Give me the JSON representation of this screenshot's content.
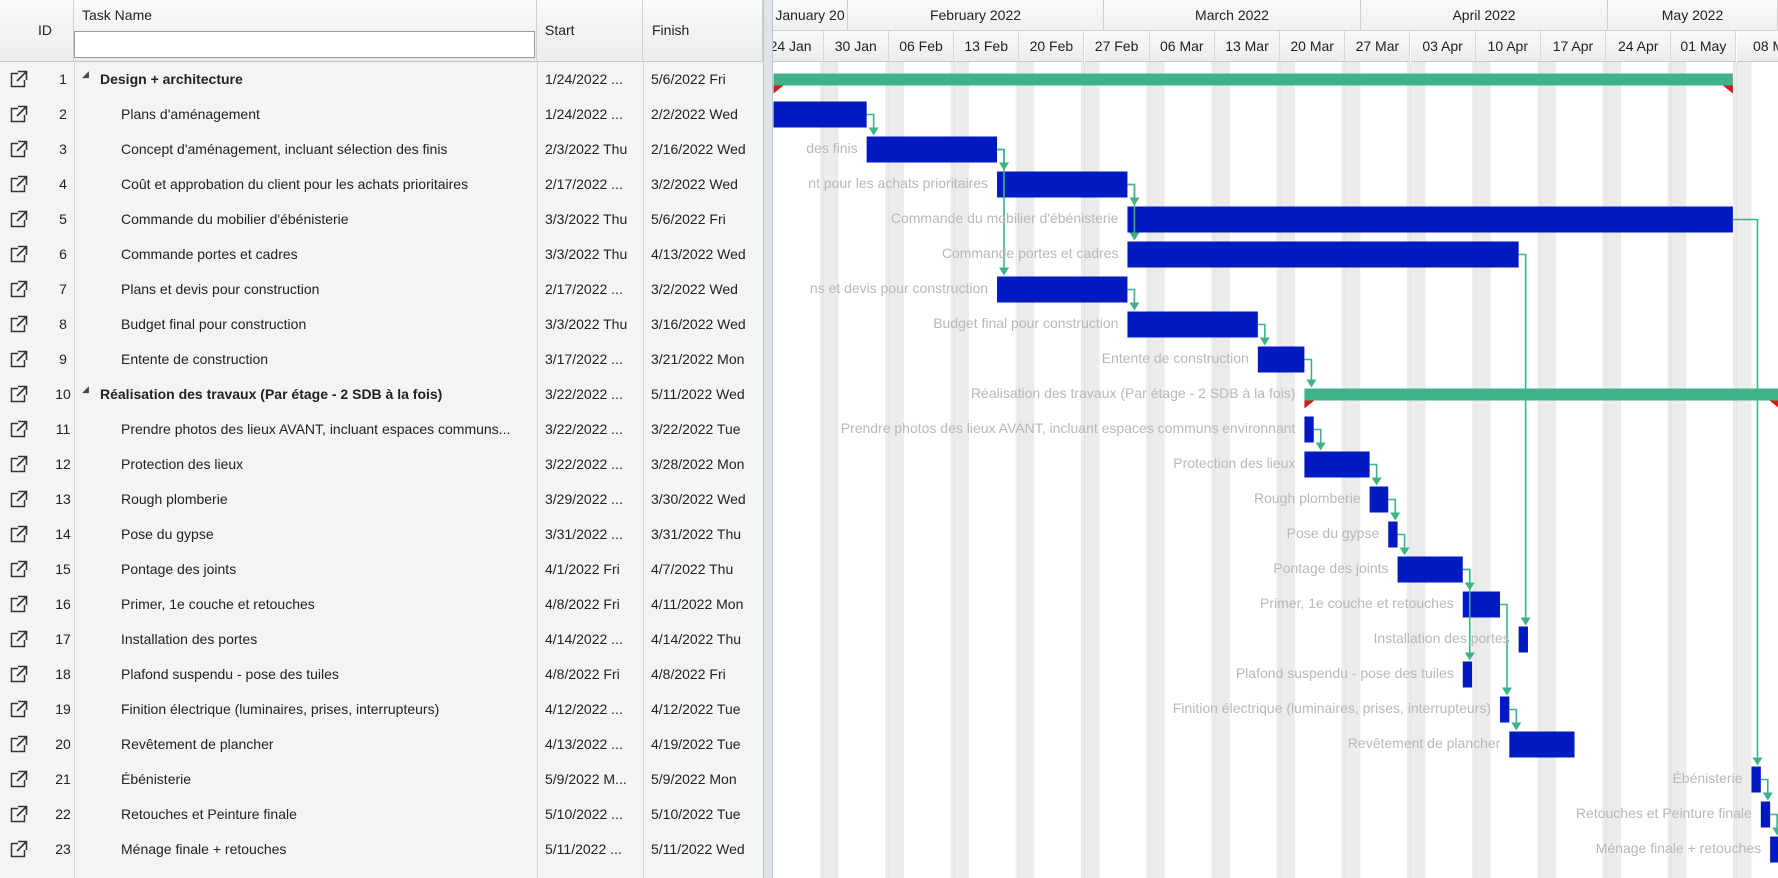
{
  "columns": {
    "id": "ID",
    "task_name": "Task Name",
    "start": "Start",
    "finish": "Finish"
  },
  "filter": {
    "value": ""
  },
  "tasks": [
    {
      "id": "1",
      "name": "Design + architecture",
      "start": "1/24/2022 ...",
      "finish": "5/6/2022 Fri",
      "summary": true,
      "label": ""
    },
    {
      "id": "2",
      "name": "Plans d'aménagement",
      "start": "1/24/2022 ...",
      "finish": "2/2/2022 Wed",
      "summary": false,
      "label": ""
    },
    {
      "id": "3",
      "name": "Concept d'aménagement, incluant sélection des finis",
      "start": "2/3/2022 Thu",
      "finish": "2/16/2022 Wed",
      "summary": false,
      "label": "des finis"
    },
    {
      "id": "4",
      "name": "Coût et approbation du client pour les achats prioritaires",
      "start": "2/17/2022 ...",
      "finish": "3/2/2022 Wed",
      "summary": false,
      "label": "nt pour les achats prioritaires"
    },
    {
      "id": "5",
      "name": "Commande du mobilier d'ébénisterie",
      "start": "3/3/2022 Thu",
      "finish": "5/6/2022 Fri",
      "summary": false,
      "label": "Commande du mobilier d'ébénisterie"
    },
    {
      "id": "6",
      "name": "Commande portes et cadres",
      "start": "3/3/2022 Thu",
      "finish": "4/13/2022 Wed",
      "summary": false,
      "label": "Commande portes et cadres"
    },
    {
      "id": "7",
      "name": "Plans et devis pour construction",
      "start": "2/17/2022 ...",
      "finish": "3/2/2022 Wed",
      "summary": false,
      "label": "ns et devis pour construction"
    },
    {
      "id": "8",
      "name": "Budget final pour construction",
      "start": "3/3/2022 Thu",
      "finish": "3/16/2022 Wed",
      "summary": false,
      "label": "Budget final pour construction"
    },
    {
      "id": "9",
      "name": "Entente de construction",
      "start": "3/17/2022 ...",
      "finish": "3/21/2022 Mon",
      "summary": false,
      "label": "Entente de construction"
    },
    {
      "id": "10",
      "name": "Réalisation des travaux (Par étage - 2 SDB à la fois)",
      "start": "3/22/2022 ...",
      "finish": "5/11/2022 Wed",
      "summary": true,
      "label": "Réalisation des travaux (Par étage - 2 SDB à la fois)"
    },
    {
      "id": "11",
      "name": "Prendre photos des lieux AVANT, incluant espaces communs...",
      "start": "3/22/2022 ...",
      "finish": "3/22/2022 Tue",
      "summary": false,
      "label": "Prendre photos des lieux AVANT, incluant espaces communs environnant"
    },
    {
      "id": "12",
      "name": "Protection des lieux",
      "start": "3/22/2022 ...",
      "finish": "3/28/2022 Mon",
      "summary": false,
      "label": "Protection des lieux"
    },
    {
      "id": "13",
      "name": "Rough plomberie",
      "start": "3/29/2022 ...",
      "finish": "3/30/2022 Wed",
      "summary": false,
      "label": "Rough plomberie"
    },
    {
      "id": "14",
      "name": "Pose du gypse",
      "start": "3/31/2022 ...",
      "finish": "3/31/2022 Thu",
      "summary": false,
      "label": "Pose du gypse"
    },
    {
      "id": "15",
      "name": "Pontage des joints",
      "start": "4/1/2022 Fri",
      "finish": "4/7/2022 Thu",
      "summary": false,
      "label": "Pontage des joints"
    },
    {
      "id": "16",
      "name": "Primer, 1e couche et retouches",
      "start": "4/8/2022 Fri",
      "finish": "4/11/2022 Mon",
      "summary": false,
      "label": "Primer, 1e couche et retouches"
    },
    {
      "id": "17",
      "name": "Installation des portes",
      "start": "4/14/2022 ...",
      "finish": "4/14/2022 Thu",
      "summary": false,
      "label": "Installation des portes"
    },
    {
      "id": "18",
      "name": "Plafond suspendu - pose des tuiles",
      "start": "4/8/2022 Fri",
      "finish": "4/8/2022 Fri",
      "summary": false,
      "label": "Plafond suspendu - pose des tuiles"
    },
    {
      "id": "19",
      "name": "Finition électrique (luminaires, prises, interrupteurs)",
      "start": "4/12/2022 ...",
      "finish": "4/12/2022 Tue",
      "summary": false,
      "label": "Finition électrique (luminaires, prises, interrupteurs)"
    },
    {
      "id": "20",
      "name": "Revêtement de plancher",
      "start": "4/13/2022 ...",
      "finish": "4/19/2022 Tue",
      "summary": false,
      "label": "Revêtement de plancher"
    },
    {
      "id": "21",
      "name": "Ébénisterie",
      "start": "5/9/2022 M...",
      "finish": "5/9/2022 Mon",
      "summary": false,
      "label": "Ébénisterie"
    },
    {
      "id": "22",
      "name": "Retouches et Peinture finale",
      "start": "5/10/2022 ...",
      "finish": "5/10/2022 Tue",
      "summary": false,
      "label": "Retouches et Peinture finale"
    },
    {
      "id": "23",
      "name": "Ménage finale + retouches",
      "start": "5/11/2022 ...",
      "finish": "5/11/2022 Wed",
      "summary": false,
      "label": "Ménage finale + retouches"
    }
  ],
  "timeline": {
    "months": [
      "January 20",
      "February 2022",
      "March 2022",
      "April 2022",
      "May 2022"
    ],
    "weeks": [
      "24 Jan",
      "30 Jan",
      "06 Feb",
      "13 Feb",
      "20 Feb",
      "27 Feb",
      "06 Mar",
      "13 Mar",
      "20 Mar",
      "27 Mar",
      "03 Apr",
      "10 Apr",
      "17 Apr",
      "24 Apr",
      "01 May",
      "08 M"
    ]
  },
  "colors": {
    "task_bar": "#0019c0",
    "summary_bar": "#3fb287",
    "link": "#3fb287",
    "summary_marker": "#d81818"
  },
  "icons": {
    "row_open": "open-in-new-window-icon",
    "collapse": "collapse-triangle-icon"
  }
}
